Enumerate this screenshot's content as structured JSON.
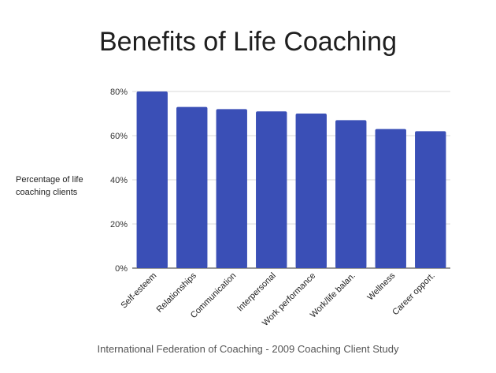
{
  "chart_data": {
    "type": "bar",
    "title": "Benefits of Life Coaching",
    "ylabel": "Percentage of life coaching clients",
    "xlabel": "",
    "categories": [
      "Self-esteem",
      "Relationships",
      "Communication",
      "Interpersonal",
      "Work performance",
      "Work/life balan.",
      "Wellness",
      "Career opport."
    ],
    "values": [
      80,
      73,
      72,
      71,
      70,
      67,
      63,
      62
    ],
    "ylim": [
      0,
      80
    ],
    "yticks": [
      0,
      20,
      40,
      60,
      80
    ],
    "ytick_labels": [
      "0%",
      "20%",
      "40%",
      "60%",
      "80%"
    ],
    "grid": true,
    "bar_color": "#3a4fb6",
    "source": "International Federation of Coaching - 2009 Coaching Client Study"
  }
}
